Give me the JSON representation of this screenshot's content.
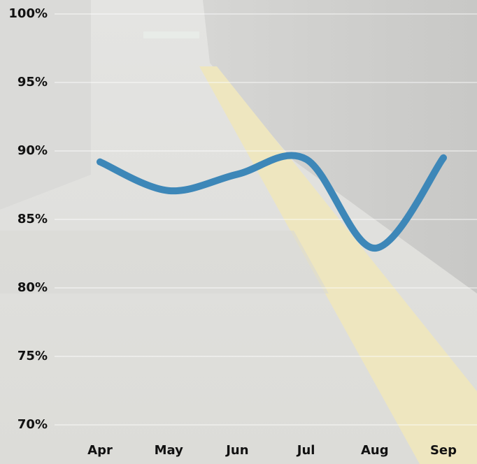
{
  "chart_data": {
    "type": "line",
    "categories": [
      "Apr",
      "May",
      "Jun",
      "Jul",
      "Aug",
      "Sep"
    ],
    "series": [
      {
        "name": null,
        "color": "#3d87b8",
        "values": [
          89.2,
          87.1,
          88.3,
          89.4,
          82.9,
          89.5
        ]
      }
    ],
    "ylim": [
      70,
      100
    ],
    "yticks": [
      {
        "value": 70,
        "label": "70%"
      },
      {
        "value": 75,
        "label": "75%"
      },
      {
        "value": 80,
        "label": "80%"
      },
      {
        "value": 85,
        "label": "85%"
      },
      {
        "value": 90,
        "label": "90%"
      },
      {
        "value": 95,
        "label": "95%"
      },
      {
        "value": 100,
        "label": "100%"
      }
    ],
    "grid": true
  }
}
